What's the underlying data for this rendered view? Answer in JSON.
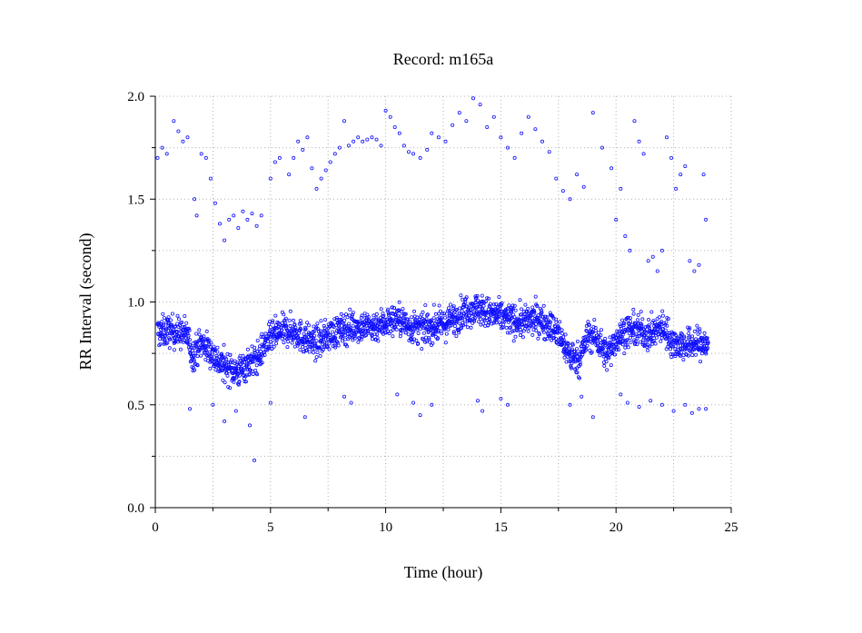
{
  "chart_data": {
    "type": "scatter",
    "title": "Record:  m165a",
    "xlabel": "Time (hour)",
    "ylabel": "RR Interval (second)",
    "xlim": [
      0,
      25
    ],
    "ylim": [
      0.0,
      2.0
    ],
    "x_ticks": [
      "0",
      "5",
      "10",
      "15",
      "20",
      "25"
    ],
    "y_ticks": [
      "0.0",
      "0.5",
      "1.0",
      "1.5",
      "2.0"
    ],
    "grid": true,
    "marker": "open-circle",
    "color": "#1010ff",
    "series": [
      {
        "x_range": [
          0.1,
          24.0
        ],
        "baseline_trend": [
          [
            0.0,
            0.85
          ],
          [
            0.6,
            0.86
          ],
          [
            1.0,
            0.85
          ],
          [
            1.4,
            0.84
          ],
          [
            1.6,
            0.74
          ],
          [
            2.0,
            0.8
          ],
          [
            2.4,
            0.76
          ],
          [
            2.8,
            0.7
          ],
          [
            3.2,
            0.68
          ],
          [
            3.6,
            0.66
          ],
          [
            4.0,
            0.7
          ],
          [
            4.4,
            0.72
          ],
          [
            4.8,
            0.8
          ],
          [
            5.2,
            0.84
          ],
          [
            5.6,
            0.86
          ],
          [
            6.0,
            0.86
          ],
          [
            6.5,
            0.82
          ],
          [
            7.0,
            0.8
          ],
          [
            7.5,
            0.84
          ],
          [
            8.0,
            0.86
          ],
          [
            8.5,
            0.88
          ],
          [
            9.0,
            0.88
          ],
          [
            9.5,
            0.88
          ],
          [
            10.0,
            0.9
          ],
          [
            10.5,
            0.92
          ],
          [
            11.0,
            0.88
          ],
          [
            11.5,
            0.87
          ],
          [
            12.0,
            0.88
          ],
          [
            12.5,
            0.89
          ],
          [
            13.0,
            0.92
          ],
          [
            13.5,
            0.96
          ],
          [
            14.0,
            0.97
          ],
          [
            14.5,
            0.94
          ],
          [
            15.0,
            0.93
          ],
          [
            15.5,
            0.91
          ],
          [
            16.0,
            0.9
          ],
          [
            16.5,
            0.92
          ],
          [
            17.0,
            0.9
          ],
          [
            17.5,
            0.84
          ],
          [
            18.0,
            0.74
          ],
          [
            18.4,
            0.72
          ],
          [
            18.8,
            0.84
          ],
          [
            19.2,
            0.82
          ],
          [
            19.6,
            0.74
          ],
          [
            20.0,
            0.82
          ],
          [
            20.5,
            0.86
          ],
          [
            21.0,
            0.86
          ],
          [
            21.5,
            0.84
          ],
          [
            22.0,
            0.88
          ],
          [
            22.5,
            0.8
          ],
          [
            23.0,
            0.79
          ],
          [
            23.5,
            0.8
          ],
          [
            24.0,
            0.79
          ]
        ],
        "band_width": 0.13
      },
      {
        "outliers_high": [
          [
            0.1,
            1.7
          ],
          [
            0.3,
            1.75
          ],
          [
            0.5,
            1.72
          ],
          [
            0.8,
            1.88
          ],
          [
            1.0,
            1.83
          ],
          [
            1.2,
            1.78
          ],
          [
            1.4,
            1.8
          ],
          [
            1.7,
            1.5
          ],
          [
            1.8,
            1.42
          ],
          [
            2.0,
            1.72
          ],
          [
            2.2,
            1.7
          ],
          [
            2.4,
            1.6
          ],
          [
            2.6,
            1.48
          ],
          [
            2.8,
            1.38
          ],
          [
            3.0,
            1.3
          ],
          [
            3.2,
            1.4
          ],
          [
            3.4,
            1.42
          ],
          [
            3.6,
            1.36
          ],
          [
            3.8,
            1.44
          ],
          [
            4.0,
            1.4
          ],
          [
            4.2,
            1.43
          ],
          [
            4.4,
            1.37
          ],
          [
            4.6,
            1.42
          ],
          [
            5.0,
            1.6
          ],
          [
            5.2,
            1.68
          ],
          [
            5.4,
            1.7
          ],
          [
            5.8,
            1.62
          ],
          [
            6.0,
            1.7
          ],
          [
            6.2,
            1.78
          ],
          [
            6.4,
            1.74
          ],
          [
            6.6,
            1.8
          ],
          [
            6.8,
            1.65
          ],
          [
            7.0,
            1.55
          ],
          [
            7.2,
            1.6
          ],
          [
            7.4,
            1.64
          ],
          [
            7.6,
            1.68
          ],
          [
            7.8,
            1.72
          ],
          [
            8.0,
            1.75
          ],
          [
            8.2,
            1.88
          ],
          [
            8.4,
            1.76
          ],
          [
            8.6,
            1.78
          ],
          [
            8.8,
            1.8
          ],
          [
            9.0,
            1.78
          ],
          [
            9.2,
            1.79
          ],
          [
            9.4,
            1.8
          ],
          [
            9.6,
            1.79
          ],
          [
            9.8,
            1.76
          ],
          [
            10.0,
            1.93
          ],
          [
            10.2,
            1.9
          ],
          [
            10.4,
            1.85
          ],
          [
            10.6,
            1.82
          ],
          [
            10.8,
            1.76
          ],
          [
            11.0,
            1.73
          ],
          [
            11.2,
            1.72
          ],
          [
            11.5,
            1.7
          ],
          [
            11.8,
            1.74
          ],
          [
            12.0,
            1.82
          ],
          [
            12.3,
            1.8
          ],
          [
            12.6,
            1.78
          ],
          [
            12.9,
            1.86
          ],
          [
            13.2,
            1.92
          ],
          [
            13.5,
            1.88
          ],
          [
            13.8,
            1.99
          ],
          [
            14.1,
            1.96
          ],
          [
            14.4,
            1.85
          ],
          [
            14.7,
            1.9
          ],
          [
            15.0,
            1.8
          ],
          [
            15.3,
            1.75
          ],
          [
            15.6,
            1.7
          ],
          [
            15.9,
            1.82
          ],
          [
            16.2,
            1.9
          ],
          [
            16.5,
            1.84
          ],
          [
            16.8,
            1.78
          ],
          [
            17.1,
            1.73
          ],
          [
            17.4,
            1.6
          ],
          [
            17.7,
            1.54
          ],
          [
            18.0,
            1.5
          ],
          [
            18.3,
            1.62
          ],
          [
            18.6,
            1.56
          ],
          [
            19.0,
            1.92
          ],
          [
            19.4,
            1.75
          ],
          [
            19.8,
            1.65
          ],
          [
            20.0,
            1.4
          ],
          [
            20.2,
            1.55
          ],
          [
            20.4,
            1.32
          ],
          [
            20.6,
            1.25
          ],
          [
            20.8,
            1.88
          ],
          [
            21.0,
            1.78
          ],
          [
            21.2,
            1.72
          ],
          [
            21.4,
            1.2
          ],
          [
            21.6,
            1.22
          ],
          [
            21.8,
            1.15
          ],
          [
            22.0,
            1.25
          ],
          [
            22.2,
            1.8
          ],
          [
            22.4,
            1.7
          ],
          [
            22.6,
            1.55
          ],
          [
            22.8,
            1.62
          ],
          [
            23.0,
            1.66
          ],
          [
            23.2,
            1.2
          ],
          [
            23.4,
            1.15
          ],
          [
            23.6,
            1.18
          ],
          [
            23.8,
            1.62
          ],
          [
            23.9,
            1.4
          ]
        ]
      },
      {
        "outliers_low": [
          [
            1.5,
            0.48
          ],
          [
            2.5,
            0.5
          ],
          [
            3.0,
            0.42
          ],
          [
            3.5,
            0.47
          ],
          [
            4.1,
            0.4
          ],
          [
            4.3,
            0.23
          ],
          [
            5.0,
            0.51
          ],
          [
            6.5,
            0.44
          ],
          [
            8.2,
            0.54
          ],
          [
            8.5,
            0.51
          ],
          [
            10.5,
            0.55
          ],
          [
            11.2,
            0.51
          ],
          [
            11.5,
            0.45
          ],
          [
            12.0,
            0.5
          ],
          [
            14.0,
            0.52
          ],
          [
            14.2,
            0.47
          ],
          [
            15.0,
            0.53
          ],
          [
            15.3,
            0.5
          ],
          [
            18.0,
            0.5
          ],
          [
            18.5,
            0.54
          ],
          [
            19.0,
            0.44
          ],
          [
            20.2,
            0.55
          ],
          [
            20.5,
            0.51
          ],
          [
            21.0,
            0.49
          ],
          [
            21.5,
            0.52
          ],
          [
            22.0,
            0.5
          ],
          [
            22.5,
            0.47
          ],
          [
            23.0,
            0.5
          ],
          [
            23.3,
            0.46
          ],
          [
            23.6,
            0.48
          ],
          [
            23.9,
            0.48
          ]
        ]
      }
    ]
  }
}
